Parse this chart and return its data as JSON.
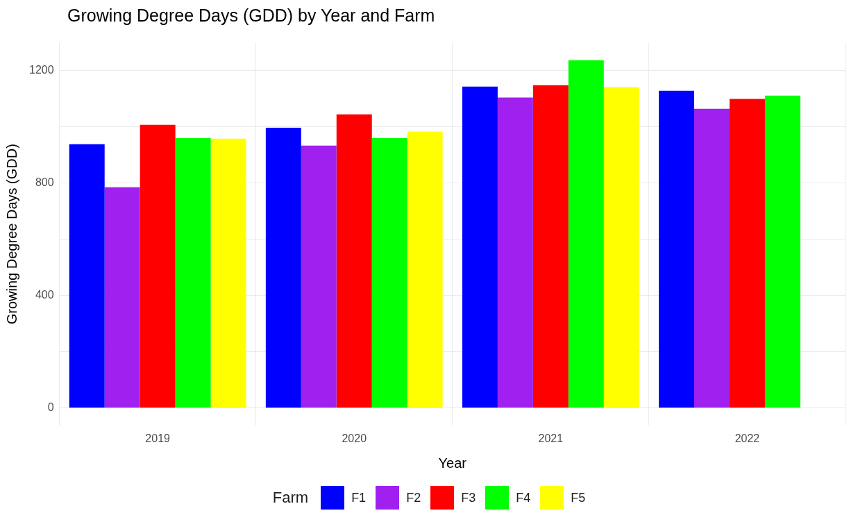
{
  "chart_data": {
    "type": "bar",
    "title": "Growing Degree Days (GDD) by Year and Farm",
    "xlabel": "Year",
    "ylabel": "Growing Degree Days (GDD)",
    "legend_title": "Farm",
    "categories": [
      "2019",
      "2020",
      "2021",
      "2022"
    ],
    "series": [
      {
        "name": "F1",
        "color": "#0000ff",
        "values": [
          938,
          997,
          1143,
          1128
        ]
      },
      {
        "name": "F2",
        "color": "#a020f0",
        "values": [
          785,
          933,
          1104,
          1064
        ]
      },
      {
        "name": "F3",
        "color": "#ff0000",
        "values": [
          1007,
          1044,
          1148,
          1099
        ]
      },
      {
        "name": "F4",
        "color": "#00ff00",
        "values": [
          960,
          960,
          1237,
          1111
        ]
      },
      {
        "name": "F5",
        "color": "#ffff00",
        "values": [
          958,
          983,
          1141,
          null
        ]
      }
    ],
    "ylim": [
      -62,
      1299
    ],
    "yticks": [
      0,
      {
        "value": 200,
        "label": null
      },
      400,
      {
        "value": 600,
        "label": null
      },
      800,
      {
        "value": 1000,
        "label": null
      },
      1200
    ],
    "grid": true,
    "legend": "bottom"
  }
}
